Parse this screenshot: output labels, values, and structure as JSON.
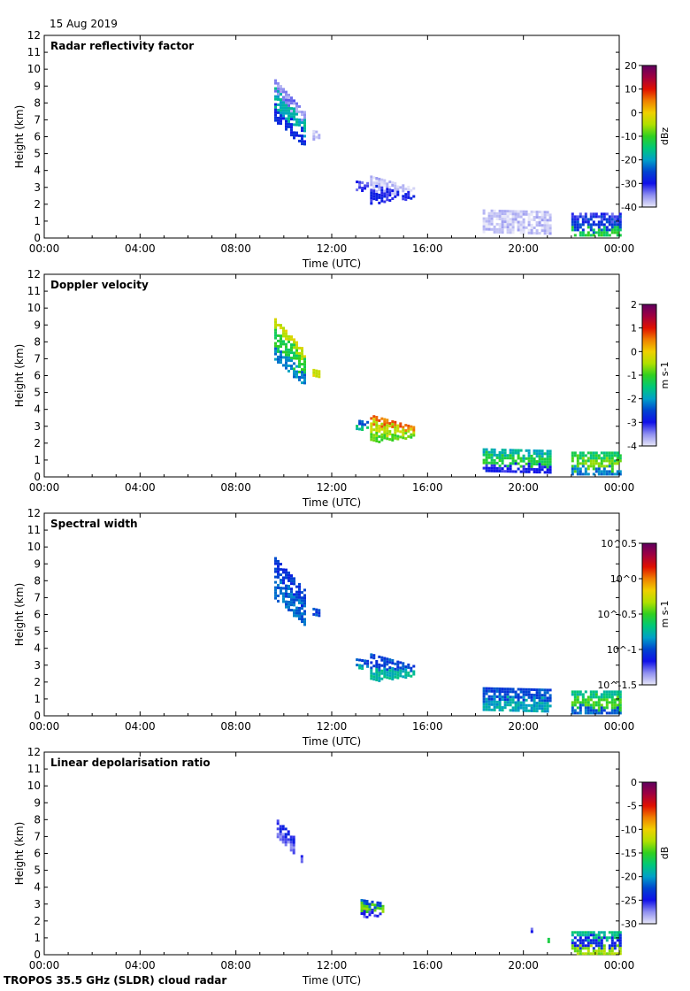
{
  "date": "15 Aug 2019",
  "footer": "TROPOS 35.5 GHz (SLDR) cloud radar",
  "xlabel": "Time (UTC)",
  "ylabel": "Height (km)",
  "colors": {
    "colormap": [
      "#e8e8f8",
      "#9090f0",
      "#1010e8",
      "#0044d0",
      "#00a0c8",
      "#00c878",
      "#30d020",
      "#b0e000",
      "#f0d000",
      "#f08000",
      "#e01000",
      "#a00040",
      "#600060"
    ],
    "frame": "#000000",
    "background": "#ffffff"
  },
  "chart_data": [
    {
      "type": "heatmap",
      "title": "Radar reflectivity factor",
      "xlabel": "Time (UTC)",
      "ylabel": "Height (km)",
      "xlim": [
        0,
        24
      ],
      "ylim": [
        0,
        12
      ],
      "xticks": [
        "00:00",
        "04:00",
        "08:00",
        "12:00",
        "16:00",
        "20:00",
        "00:00"
      ],
      "yticks": [
        "0",
        "1",
        "2",
        "3",
        "4",
        "5",
        "6",
        "7",
        "8",
        "9",
        "10",
        "11",
        "12"
      ],
      "colorbar": {
        "label": "dBz",
        "range": [
          -40,
          20
        ],
        "ticks": [
          "20",
          "10",
          "0",
          "-10",
          "-20",
          "-30",
          "-40"
        ],
        "log": false
      },
      "features": [
        {
          "t0": 9.6,
          "t1": 10.9,
          "hTop0": 9.4,
          "hTop1": 7.4,
          "hBot0": 7.0,
          "hBot1": 5.3,
          "values": [
            -35,
            -18,
            -28
          ]
        },
        {
          "t0": 11.2,
          "t1": 11.5,
          "hTop0": 6.4,
          "hTop1": 6.3,
          "hBot0": 5.9,
          "hBot1": 5.9,
          "values": [
            -38
          ]
        },
        {
          "t0": 13.0,
          "t1": 13.5,
          "hTop0": 3.4,
          "hTop1": 3.3,
          "hBot0": 2.8,
          "hBot1": 2.9,
          "values": [
            -32
          ]
        },
        {
          "t0": 13.6,
          "t1": 15.4,
          "hTop0": 3.7,
          "hTop1": 3.0,
          "hBot0": 2.1,
          "hBot1": 2.4,
          "values": [
            -38,
            -30
          ]
        },
        {
          "t0": 18.3,
          "t1": 21.1,
          "hTop0": 1.7,
          "hTop1": 1.6,
          "hBot0": 0.4,
          "hBot1": 0.3,
          "values": [
            -38
          ]
        },
        {
          "t0": 22.0,
          "t1": 24.0,
          "hTop0": 1.5,
          "hTop1": 1.5,
          "hBot0": 0.1,
          "hBot1": 0.1,
          "values": [
            -32,
            -26,
            -12
          ]
        }
      ]
    },
    {
      "type": "heatmap",
      "title": "Doppler velocity",
      "xlabel": "Time (UTC)",
      "ylabel": "Height (km)",
      "xlim": [
        0,
        24
      ],
      "ylim": [
        0,
        12
      ],
      "xticks": [
        "00:00",
        "04:00",
        "08:00",
        "12:00",
        "16:00",
        "20:00",
        "00:00"
      ],
      "yticks": [
        "0",
        "1",
        "2",
        "3",
        "4",
        "5",
        "6",
        "7",
        "8",
        "9",
        "10",
        "11",
        "12"
      ],
      "colorbar": {
        "label": "m s-1",
        "range": [
          -4,
          2
        ],
        "ticks": [
          "2",
          "1",
          "0",
          "-1",
          "-2",
          "-3",
          "-4"
        ],
        "log": false
      },
      "features": [
        {
          "t0": 9.6,
          "t1": 10.9,
          "hTop0": 9.4,
          "hTop1": 7.4,
          "hBot0": 7.0,
          "hBot1": 5.3,
          "values": [
            -0.3,
            -1.2,
            -2.2
          ]
        },
        {
          "t0": 11.2,
          "t1": 11.5,
          "hTop0": 6.4,
          "hTop1": 6.3,
          "hBot0": 5.9,
          "hBot1": 5.9,
          "values": [
            -0.2
          ]
        },
        {
          "t0": 13.0,
          "t1": 13.5,
          "hTop0": 3.4,
          "hTop1": 3.3,
          "hBot0": 2.8,
          "hBot1": 2.9,
          "values": [
            -2.4,
            -1.6
          ]
        },
        {
          "t0": 13.6,
          "t1": 15.4,
          "hTop0": 3.7,
          "hTop1": 3.0,
          "hBot0": 2.1,
          "hBot1": 2.4,
          "values": [
            0.6,
            -0.4,
            -0.9
          ]
        },
        {
          "t0": 18.3,
          "t1": 21.1,
          "hTop0": 1.7,
          "hTop1": 1.6,
          "hBot0": 0.4,
          "hBot1": 0.3,
          "values": [
            -1.8,
            -1.2,
            -3.0
          ]
        },
        {
          "t0": 22.0,
          "t1": 24.0,
          "hTop0": 1.5,
          "hTop1": 1.5,
          "hBot0": 0.1,
          "hBot1": 0.1,
          "values": [
            -1.4,
            -0.8,
            -2.2
          ]
        }
      ]
    },
    {
      "type": "heatmap",
      "title": "Spectral width",
      "xlabel": "Time (UTC)",
      "ylabel": "Height (km)",
      "xlim": [
        0,
        24
      ],
      "ylim": [
        0,
        12
      ],
      "xticks": [
        "00:00",
        "04:00",
        "08:00",
        "12:00",
        "16:00",
        "20:00",
        "00:00"
      ],
      "yticks": [
        "0",
        "1",
        "2",
        "3",
        "4",
        "5",
        "6",
        "7",
        "8",
        "9",
        "10",
        "11",
        "12"
      ],
      "colorbar": {
        "label": "m s-1",
        "range": [
          -1.5,
          0.5
        ],
        "ticks": [
          "10^0.5",
          "10^0",
          "10^-0.5",
          "10^-1",
          "10^-1.5"
        ],
        "log": true
      },
      "features": [
        {
          "t0": 9.6,
          "t1": 10.9,
          "hTop0": 9.4,
          "hTop1": 7.4,
          "hBot0": 7.0,
          "hBot1": 5.3,
          "values": [
            -1.05,
            -0.95
          ]
        },
        {
          "t0": 11.2,
          "t1": 11.5,
          "hTop0": 6.4,
          "hTop1": 6.3,
          "hBot0": 5.9,
          "hBot1": 5.9,
          "values": [
            -1.0
          ]
        },
        {
          "t0": 13.0,
          "t1": 13.5,
          "hTop0": 3.4,
          "hTop1": 3.3,
          "hBot0": 2.8,
          "hBot1": 2.9,
          "values": [
            -1.0,
            -0.8
          ]
        },
        {
          "t0": 13.6,
          "t1": 15.4,
          "hTop0": 3.7,
          "hTop1": 3.0,
          "hBot0": 2.1,
          "hBot1": 2.4,
          "values": [
            -1.0,
            -0.75
          ]
        },
        {
          "t0": 18.3,
          "t1": 21.1,
          "hTop0": 1.7,
          "hTop1": 1.6,
          "hBot0": 0.4,
          "hBot1": 0.3,
          "values": [
            -1.0,
            -0.8
          ]
        },
        {
          "t0": 22.0,
          "t1": 24.0,
          "hTop0": 1.5,
          "hTop1": 1.5,
          "hBot0": 0.1,
          "hBot1": 0.1,
          "values": [
            -0.7,
            -0.5,
            -0.95
          ]
        }
      ]
    },
    {
      "type": "heatmap",
      "title": "Linear depolarisation ratio",
      "xlabel": "Time (UTC)",
      "ylabel": "Height (km)",
      "xlim": [
        0,
        24
      ],
      "ylim": [
        0,
        12
      ],
      "xticks": [
        "00:00",
        "04:00",
        "08:00",
        "12:00",
        "16:00",
        "20:00",
        "00:00"
      ],
      "yticks": [
        "0",
        "1",
        "2",
        "3",
        "4",
        "5",
        "6",
        "7",
        "8",
        "9",
        "10",
        "11",
        "12"
      ],
      "colorbar": {
        "label": "dB",
        "range": [
          -30,
          0
        ],
        "ticks": [
          "0",
          "-5",
          "-10",
          "-15",
          "-20",
          "-25",
          "-30"
        ],
        "log": false
      },
      "features": [
        {
          "t0": 9.7,
          "t1": 10.4,
          "hTop0": 8.0,
          "hTop1": 7.0,
          "hBot0": 7.0,
          "hBot1": 6.0,
          "values": [
            -25,
            -27
          ]
        },
        {
          "t0": 10.7,
          "t1": 10.8,
          "hTop0": 5.9,
          "hTop1": 5.9,
          "hBot0": 5.5,
          "hBot1": 5.5,
          "values": [
            -26
          ]
        },
        {
          "t0": 13.2,
          "t1": 14.1,
          "hTop0": 3.3,
          "hTop1": 3.1,
          "hBot0": 2.2,
          "hBot1": 2.4,
          "values": [
            -22,
            -14,
            -26
          ]
        },
        {
          "t0": 20.3,
          "t1": 20.4,
          "hTop0": 1.6,
          "hTop1": 1.6,
          "hBot0": 1.4,
          "hBot1": 1.4,
          "values": [
            -26
          ]
        },
        {
          "t0": 21.0,
          "t1": 21.1,
          "hTop0": 1.0,
          "hTop1": 1.0,
          "hBot0": 0.5,
          "hBot1": 0.5,
          "values": [
            -17
          ]
        },
        {
          "t0": 22.0,
          "t1": 24.0,
          "hTop0": 1.4,
          "hTop1": 1.4,
          "hBot0": 0.1,
          "hBot1": 0.1,
          "values": [
            -18,
            -24,
            -13
          ]
        }
      ]
    }
  ]
}
